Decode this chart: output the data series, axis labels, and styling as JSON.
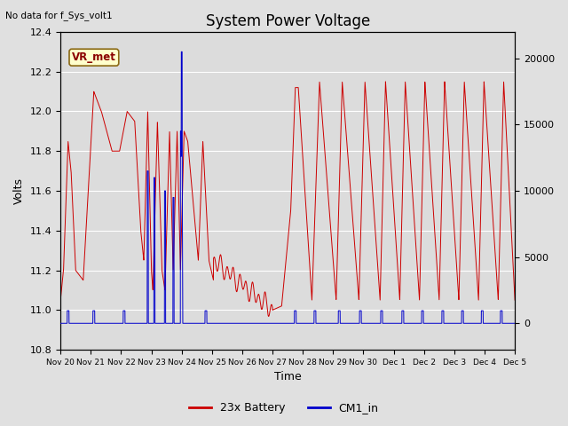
{
  "title": "System Power Voltage",
  "no_data_text": "No data for f_Sys_volt1",
  "ylabel_left": "Volts",
  "xlabel": "Time",
  "ylim_left": [
    10.8,
    12.4
  ],
  "ylim_right": [
    -2000,
    22000
  ],
  "fig_bg": "#e0e0e0",
  "plot_bg": "#dcdcdc",
  "grid_color": "#ffffff",
  "title_fontsize": 12,
  "axis_fontsize": 9,
  "tick_fontsize": 8,
  "vr_met_label": "VR_met",
  "vr_met_bg": "#ffffcc",
  "vr_met_border": "#8b6914",
  "legend_labels": [
    "23x Battery",
    "CM1_in"
  ],
  "red_color": "#cc0000",
  "blue_color": "#0000cc",
  "x_tick_labels": [
    "Nov 20",
    "Nov 21",
    "Nov 22",
    "Nov 23",
    "Nov 24",
    "Nov 25",
    "Nov 26",
    "Nov 27",
    "Nov 28",
    "Nov 29",
    "Nov 30",
    "Dec 1",
    "Dec 2",
    "Dec 3",
    "Dec 4",
    "Dec 5"
  ]
}
